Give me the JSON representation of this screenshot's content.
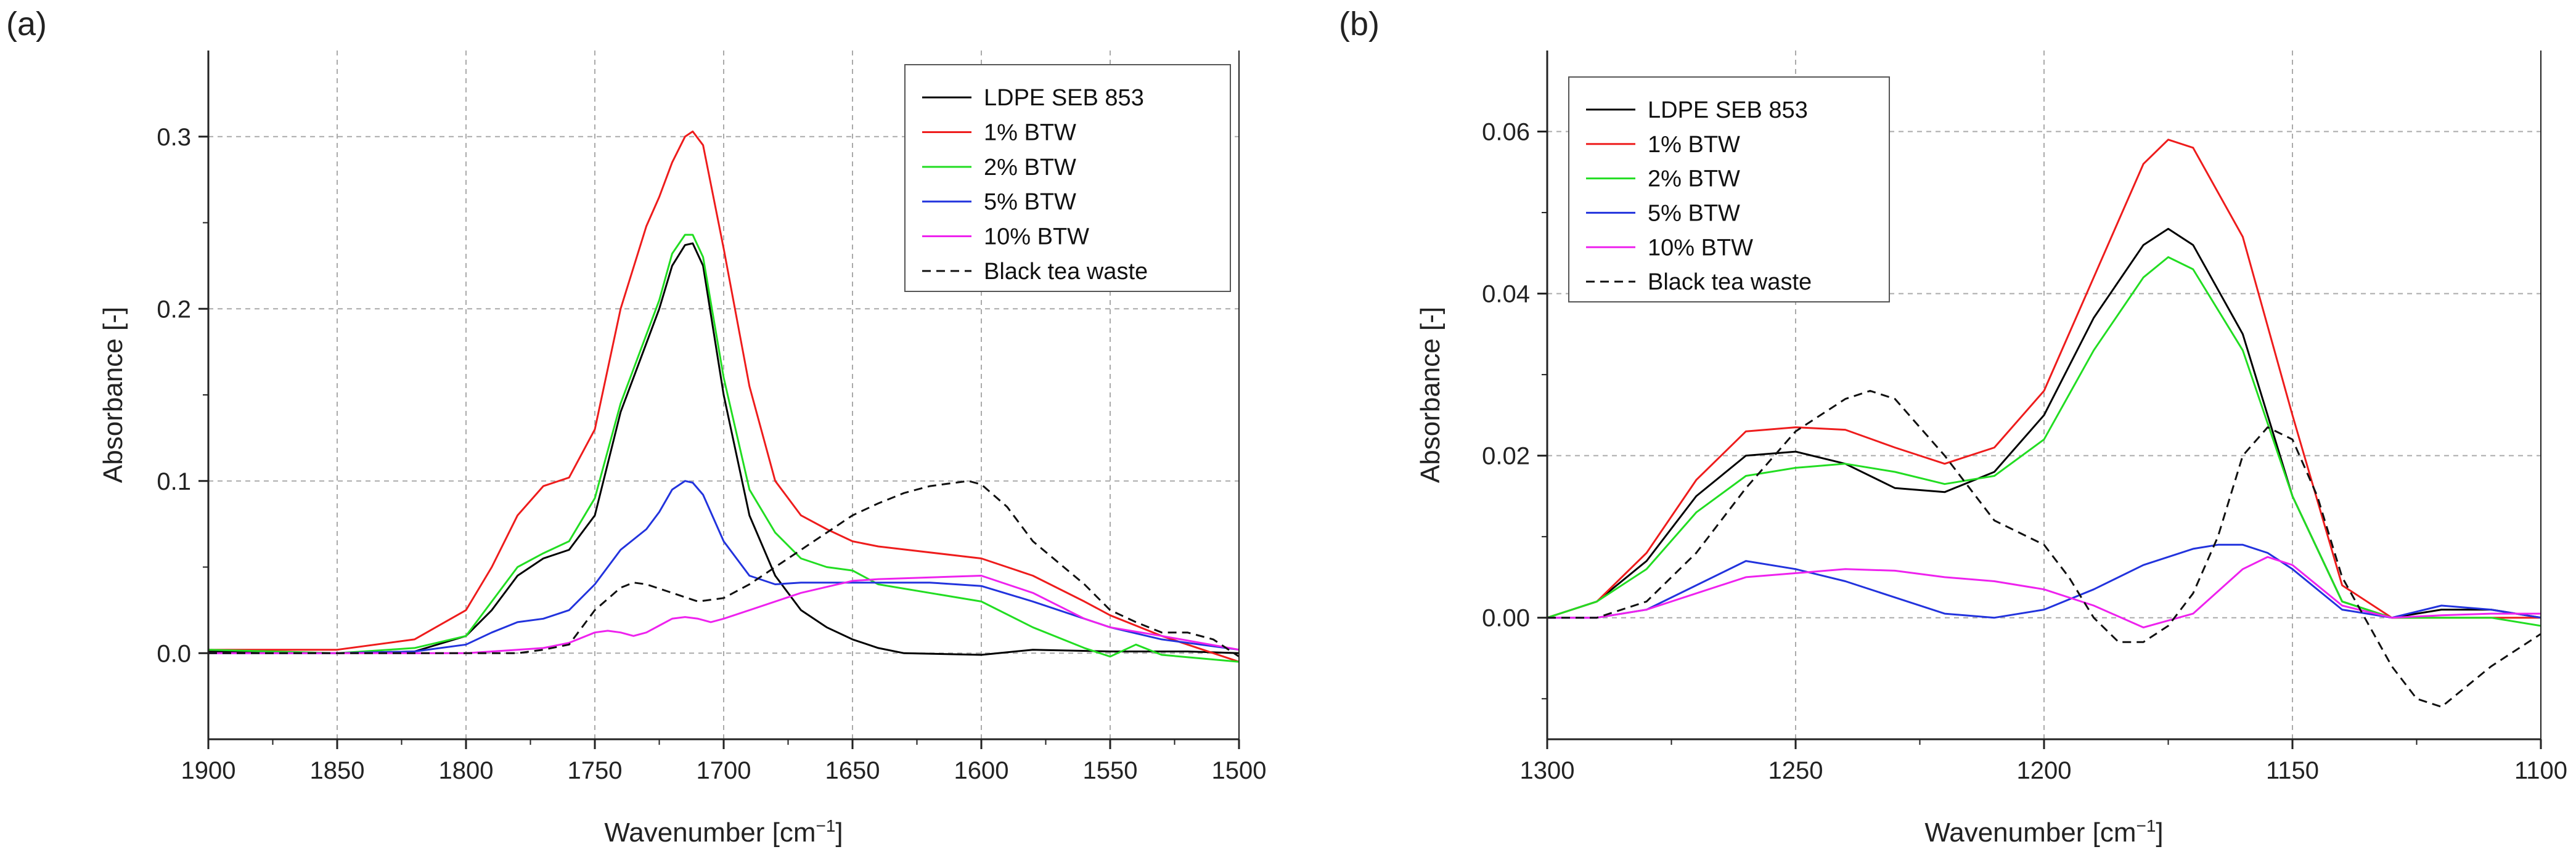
{
  "chart_data": [
    {
      "type": "line",
      "panel": "(a)",
      "xlabel": "Wavenumber [cm",
      "xlabel_sup": "−1",
      "xlabel_close": "]",
      "ylabel": "Absorbance [-]",
      "xlim": [
        1900,
        1500
      ],
      "ylim": [
        -0.05,
        0.35
      ],
      "xticks": [
        1900,
        1850,
        1800,
        1750,
        1700,
        1650,
        1600,
        1550,
        1500
      ],
      "xtick_labels": [
        "1900",
        "1850",
        "1800",
        "1750",
        "1700",
        "1650",
        "1600",
        "1550",
        "1500"
      ],
      "yticks": [
        0.0,
        0.1,
        0.2,
        0.3
      ],
      "ytick_labels": [
        "0.0",
        "0.1",
        "0.2",
        "0.3"
      ],
      "grid": true,
      "legend_position": "top-right",
      "series": [
        {
          "name": "LDPE SEB 853",
          "color": "#000000",
          "dash": "solid",
          "x": [
            1900,
            1850,
            1820,
            1800,
            1790,
            1780,
            1770,
            1760,
            1750,
            1740,
            1730,
            1725,
            1720,
            1715,
            1712,
            1708,
            1700,
            1690,
            1680,
            1670,
            1660,
            1650,
            1640,
            1630,
            1600,
            1580,
            1550,
            1520,
            1500
          ],
          "y": [
            0.001,
            0.0,
            0.001,
            0.01,
            0.025,
            0.045,
            0.055,
            0.06,
            0.08,
            0.14,
            0.18,
            0.2,
            0.225,
            0.237,
            0.238,
            0.225,
            0.15,
            0.08,
            0.045,
            0.025,
            0.015,
            0.008,
            0.003,
            0.0,
            -0.001,
            0.002,
            0.001,
            0.001,
            0.0
          ]
        },
        {
          "name": "1% BTW",
          "color": "#ee1c1c",
          "dash": "solid",
          "x": [
            1900,
            1850,
            1820,
            1800,
            1790,
            1780,
            1770,
            1760,
            1750,
            1740,
            1730,
            1725,
            1720,
            1715,
            1712,
            1708,
            1700,
            1690,
            1680,
            1670,
            1660,
            1650,
            1640,
            1600,
            1580,
            1560,
            1550,
            1530,
            1500
          ],
          "y": [
            0.002,
            0.002,
            0.008,
            0.025,
            0.05,
            0.08,
            0.097,
            0.102,
            0.13,
            0.2,
            0.248,
            0.265,
            0.285,
            0.3,
            0.303,
            0.295,
            0.235,
            0.155,
            0.1,
            0.08,
            0.072,
            0.065,
            0.062,
            0.055,
            0.045,
            0.03,
            0.022,
            0.01,
            -0.005
          ]
        },
        {
          "name": "2% BTW",
          "color": "#22dd22",
          "dash": "solid",
          "x": [
            1900,
            1850,
            1820,
            1800,
            1790,
            1780,
            1770,
            1760,
            1750,
            1740,
            1730,
            1725,
            1720,
            1715,
            1712,
            1708,
            1700,
            1690,
            1680,
            1670,
            1660,
            1650,
            1640,
            1600,
            1580,
            1560,
            1550,
            1540,
            1530,
            1500
          ],
          "y": [
            0.002,
            0.0,
            0.003,
            0.01,
            0.03,
            0.05,
            0.058,
            0.065,
            0.09,
            0.145,
            0.185,
            0.205,
            0.232,
            0.243,
            0.243,
            0.23,
            0.16,
            0.095,
            0.07,
            0.055,
            0.05,
            0.048,
            0.04,
            0.03,
            0.015,
            0.003,
            -0.002,
            0.005,
            -0.001,
            -0.005
          ]
        },
        {
          "name": "5% BTW",
          "color": "#2233dd",
          "dash": "solid",
          "x": [
            1900,
            1850,
            1820,
            1800,
            1790,
            1780,
            1770,
            1760,
            1750,
            1740,
            1730,
            1725,
            1720,
            1715,
            1712,
            1708,
            1700,
            1690,
            1680,
            1670,
            1660,
            1650,
            1640,
            1620,
            1600,
            1580,
            1560,
            1550,
            1530,
            1500
          ],
          "y": [
            0.0,
            0.0,
            0.001,
            0.005,
            0.012,
            0.018,
            0.02,
            0.025,
            0.04,
            0.06,
            0.072,
            0.082,
            0.095,
            0.1,
            0.099,
            0.092,
            0.065,
            0.045,
            0.04,
            0.041,
            0.041,
            0.041,
            0.041,
            0.041,
            0.039,
            0.03,
            0.02,
            0.015,
            0.008,
            0.002
          ]
        },
        {
          "name": "10% BTW",
          "color": "#ee22ee",
          "dash": "solid",
          "x": [
            1900,
            1850,
            1800,
            1780,
            1770,
            1760,
            1750,
            1745,
            1740,
            1735,
            1730,
            1725,
            1720,
            1715,
            1710,
            1705,
            1700,
            1690,
            1680,
            1670,
            1650,
            1640,
            1600,
            1580,
            1560,
            1550,
            1530,
            1500
          ],
          "y": [
            0.0,
            0.0,
            0.0,
            0.002,
            0.003,
            0.006,
            0.012,
            0.013,
            0.012,
            0.01,
            0.012,
            0.016,
            0.02,
            0.021,
            0.02,
            0.018,
            0.02,
            0.025,
            0.03,
            0.035,
            0.042,
            0.043,
            0.045,
            0.035,
            0.02,
            0.015,
            0.01,
            0.002
          ]
        },
        {
          "name": "Black tea waste",
          "color": "#111111",
          "dash": "dashed",
          "x": [
            1900,
            1850,
            1800,
            1780,
            1770,
            1760,
            1750,
            1740,
            1735,
            1730,
            1720,
            1710,
            1700,
            1690,
            1680,
            1660,
            1650,
            1640,
            1630,
            1620,
            1610,
            1605,
            1600,
            1590,
            1580,
            1560,
            1550,
            1540,
            1530,
            1520,
            1510,
            1500
          ],
          "y": [
            0.0,
            0.0,
            0.0,
            0.0,
            0.002,
            0.005,
            0.025,
            0.038,
            0.041,
            0.04,
            0.035,
            0.03,
            0.032,
            0.04,
            0.05,
            0.07,
            0.08,
            0.087,
            0.093,
            0.097,
            0.099,
            0.1,
            0.098,
            0.085,
            0.065,
            0.04,
            0.025,
            0.018,
            0.012,
            0.012,
            0.008,
            -0.002
          ]
        }
      ]
    },
    {
      "type": "line",
      "panel": "(b)",
      "xlabel": "Wavenumber [cm",
      "xlabel_sup": "−1",
      "xlabel_close": "]",
      "ylabel": "Absorbance [-]",
      "xlim": [
        1300,
        1100
      ],
      "ylim": [
        -0.015,
        0.07
      ],
      "xticks": [
        1300,
        1250,
        1200,
        1150,
        1100
      ],
      "xtick_labels": [
        "1300",
        "1250",
        "1200",
        "1150",
        "1100"
      ],
      "yticks": [
        0.0,
        0.02,
        0.04,
        0.06
      ],
      "ytick_labels": [
        "0.00",
        "0.02",
        "0.04",
        "0.06"
      ],
      "grid": true,
      "legend_position": "top-left",
      "series": [
        {
          "name": "LDPE SEB 853",
          "color": "#000000",
          "dash": "solid",
          "x": [
            1300,
            1290,
            1280,
            1270,
            1260,
            1250,
            1240,
            1230,
            1220,
            1210,
            1200,
            1190,
            1180,
            1175,
            1170,
            1160,
            1150,
            1140,
            1130,
            1120,
            1110,
            1100
          ],
          "y": [
            0.0,
            0.002,
            0.007,
            0.015,
            0.02,
            0.0205,
            0.019,
            0.016,
            0.0155,
            0.018,
            0.025,
            0.037,
            0.046,
            0.048,
            0.046,
            0.035,
            0.015,
            0.002,
            0.0,
            0.001,
            0.001,
            0.0
          ]
        },
        {
          "name": "1% BTW",
          "color": "#ee1c1c",
          "dash": "solid",
          "x": [
            1300,
            1290,
            1280,
            1270,
            1260,
            1250,
            1240,
            1230,
            1220,
            1210,
            1200,
            1190,
            1180,
            1175,
            1170,
            1160,
            1150,
            1140,
            1130,
            1120,
            1110,
            1100
          ],
          "y": [
            0.0,
            0.002,
            0.008,
            0.017,
            0.023,
            0.0235,
            0.0232,
            0.021,
            0.019,
            0.021,
            0.028,
            0.042,
            0.056,
            0.059,
            0.058,
            0.047,
            0.025,
            0.004,
            0.0,
            0.0,
            0.0,
            0.0
          ]
        },
        {
          "name": "2% BTW",
          "color": "#22dd22",
          "dash": "solid",
          "x": [
            1300,
            1290,
            1280,
            1270,
            1260,
            1250,
            1240,
            1230,
            1220,
            1210,
            1200,
            1190,
            1180,
            1175,
            1170,
            1160,
            1150,
            1140,
            1130,
            1120,
            1110,
            1100
          ],
          "y": [
            0.0,
            0.002,
            0.006,
            0.013,
            0.0175,
            0.0185,
            0.019,
            0.018,
            0.0165,
            0.0175,
            0.022,
            0.033,
            0.042,
            0.0445,
            0.043,
            0.033,
            0.015,
            0.002,
            0.0,
            0.0,
            0.0,
            -0.001
          ]
        },
        {
          "name": "5% BTW",
          "color": "#2233dd",
          "dash": "solid",
          "x": [
            1300,
            1290,
            1280,
            1270,
            1260,
            1250,
            1240,
            1230,
            1220,
            1210,
            1200,
            1190,
            1180,
            1170,
            1165,
            1160,
            1155,
            1150,
            1140,
            1130,
            1120,
            1110,
            1100
          ],
          "y": [
            0.0,
            0.0,
            0.001,
            0.004,
            0.007,
            0.006,
            0.0045,
            0.0025,
            0.0005,
            0.0,
            0.001,
            0.0035,
            0.0065,
            0.0085,
            0.009,
            0.009,
            0.008,
            0.006,
            0.001,
            0.0,
            0.0015,
            0.001,
            0.0
          ]
        },
        {
          "name": "10% BTW",
          "color": "#ee22ee",
          "dash": "solid",
          "x": [
            1300,
            1290,
            1280,
            1270,
            1260,
            1250,
            1240,
            1230,
            1220,
            1210,
            1200,
            1190,
            1180,
            1170,
            1160,
            1155,
            1150,
            1140,
            1130,
            1120,
            1110,
            1100
          ],
          "y": [
            0.0,
            0.0,
            0.001,
            0.003,
            0.005,
            0.0055,
            0.006,
            0.0058,
            0.005,
            0.0045,
            0.0035,
            0.0015,
            -0.0012,
            0.0005,
            0.006,
            0.0075,
            0.0065,
            0.0015,
            0.0,
            0.0003,
            0.0005,
            0.0005
          ]
        },
        {
          "name": "Black tea waste",
          "color": "#111111",
          "dash": "dashed",
          "x": [
            1300,
            1290,
            1280,
            1270,
            1260,
            1250,
            1240,
            1235,
            1230,
            1220,
            1210,
            1200,
            1195,
            1190,
            1185,
            1180,
            1175,
            1170,
            1165,
            1160,
            1155,
            1150,
            1145,
            1140,
            1130,
            1125,
            1120,
            1110,
            1100
          ],
          "y": [
            0.0,
            0.0,
            0.002,
            0.008,
            0.016,
            0.023,
            0.027,
            0.028,
            0.027,
            0.02,
            0.012,
            0.009,
            0.005,
            0.0,
            -0.003,
            -0.003,
            -0.001,
            0.003,
            0.01,
            0.02,
            0.0235,
            0.022,
            0.015,
            0.005,
            -0.006,
            -0.01,
            -0.011,
            -0.006,
            -0.002
          ]
        }
      ]
    }
  ]
}
